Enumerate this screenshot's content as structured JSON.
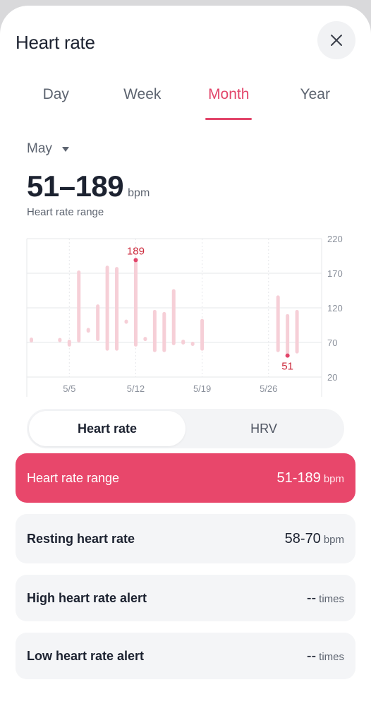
{
  "header": {
    "title": "Heart rate",
    "close_icon": "close-icon"
  },
  "tabs": [
    {
      "label": "Day",
      "active": false
    },
    {
      "label": "Week",
      "active": false
    },
    {
      "label": "Month",
      "active": true
    },
    {
      "label": "Year",
      "active": false
    }
  ],
  "period": {
    "label": "May",
    "icon": "caret-down-icon"
  },
  "summary": {
    "value": "51–189",
    "unit": "bpm",
    "caption": "Heart rate range"
  },
  "colors": {
    "accent": "#e2456a",
    "bar": "#f6cfd7",
    "card_active": "#e8476b"
  },
  "chart_data": {
    "type": "bar",
    "subtype": "range",
    "x_ticks": [
      "5/5",
      "5/12",
      "5/19",
      "5/26"
    ],
    "y_ticks": [
      220,
      170,
      120,
      70,
      20
    ],
    "ylim": [
      20,
      220
    ],
    "grid": true,
    "days": [
      1,
      2,
      3,
      4,
      5,
      6,
      7,
      8,
      9,
      10,
      11,
      12,
      13,
      14,
      15,
      16,
      17,
      18,
      19,
      20,
      21,
      22,
      23,
      24,
      25,
      26,
      27,
      28,
      29,
      30,
      31
    ],
    "low": [
      70,
      null,
      null,
      71,
      64,
      70,
      84,
      72,
      58,
      58,
      100,
      64,
      72,
      56,
      56,
      66,
      67,
      66,
      58,
      null,
      null,
      null,
      null,
      null,
      null,
      null,
      56,
      51,
      54,
      null,
      null
    ],
    "high": [
      77,
      null,
      null,
      76,
      74,
      174,
      91,
      125,
      181,
      179,
      100,
      189,
      78,
      117,
      114,
      147,
      74,
      70,
      104,
      null,
      null,
      null,
      null,
      null,
      null,
      null,
      138,
      111,
      117,
      null,
      null
    ],
    "annotations": [
      {
        "label": "189",
        "day": 12,
        "value": 189
      },
      {
        "label": "51",
        "day": 28,
        "value": 51
      }
    ]
  },
  "metric_toggle": [
    {
      "label": "Heart rate",
      "active": true
    },
    {
      "label": "HRV",
      "active": false
    }
  ],
  "cards": [
    {
      "label": "Heart rate range",
      "value": "51-189",
      "unit": "bpm",
      "active": true
    },
    {
      "label": "Resting heart rate",
      "value": "58-70",
      "unit": "bpm",
      "active": false
    },
    {
      "label": "High heart rate alert",
      "value": "--",
      "unit": "times",
      "active": false
    },
    {
      "label": "Low heart rate alert",
      "value": "--",
      "unit": "times",
      "active": false
    }
  ]
}
